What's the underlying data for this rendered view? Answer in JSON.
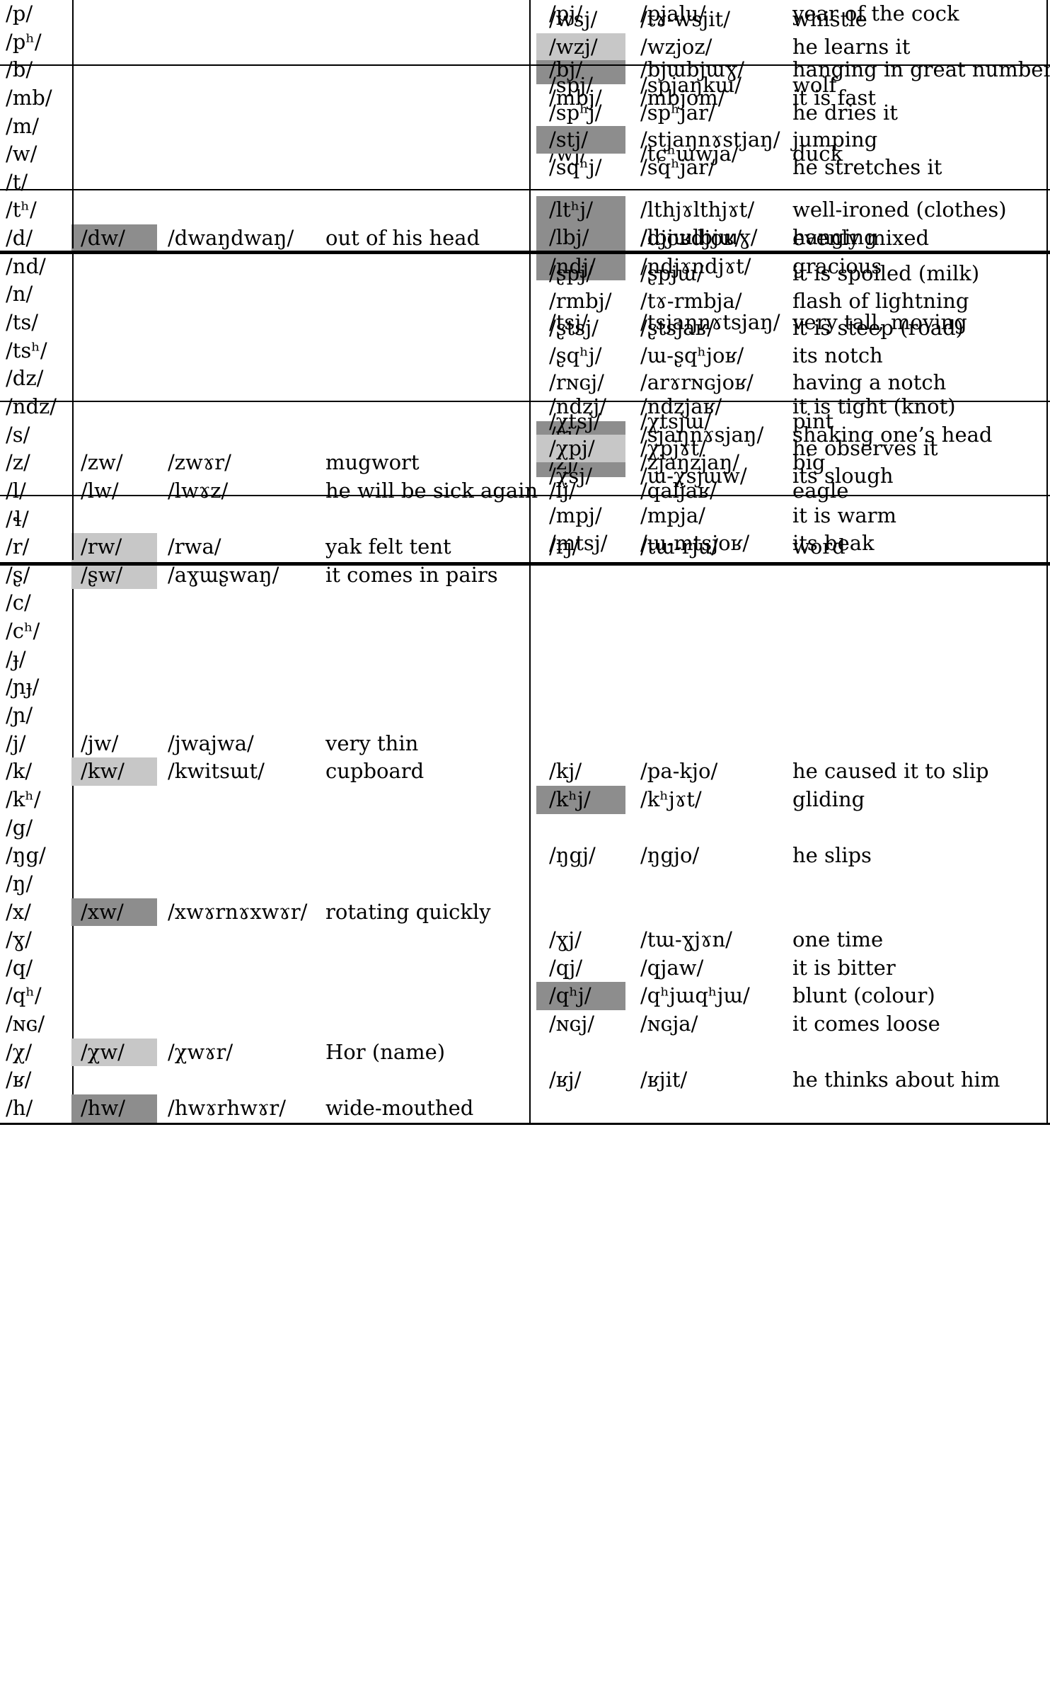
{
  "highlight_colors": {
    "dark": "#8d8d8d",
    "light": "#c7c7c7"
  },
  "main": {
    "left_rows": [
      {
        "phoneme": "/p/"
      },
      {
        "phoneme": "/pʰ/"
      },
      {
        "phoneme": "/b/"
      },
      {
        "phoneme": "/mb/"
      },
      {
        "phoneme": "/m/"
      },
      {
        "phoneme": "/w/"
      },
      {
        "phoneme": "/t/"
      },
      {
        "phoneme": "/tʰ/"
      },
      {
        "phoneme": "/d/",
        "cluster": "/dw/",
        "example": "/dwaŋdwaŋ/",
        "gloss": "out of his head",
        "hl": "dark"
      },
      {
        "phoneme": "/nd/"
      },
      {
        "phoneme": "/n/"
      },
      {
        "phoneme": "/ts/"
      },
      {
        "phoneme": "/tsʰ/"
      },
      {
        "phoneme": "/dz/"
      },
      {
        "phoneme": "/ndz/"
      },
      {
        "phoneme": "/s/"
      },
      {
        "phoneme": "/z/",
        "cluster": "/zw/",
        "example": "/zwɤr/",
        "gloss": "mugwort"
      },
      {
        "phoneme": "/l/",
        "cluster": "/lw/",
        "example": "/lwɤz/",
        "gloss": "he will be sick again"
      },
      {
        "phoneme": "/ɬ/"
      },
      {
        "phoneme": "/r/",
        "cluster": "/rw/",
        "example": "/rwa/",
        "gloss": "yak felt tent",
        "hl": "light"
      },
      {
        "phoneme": "/ʂ/",
        "cluster": "/ʂw/",
        "example": "/aɣɯʂwaŋ/",
        "gloss": "it comes in pairs",
        "hl": "light"
      },
      {
        "phoneme": "/c/"
      },
      {
        "phoneme": "/cʰ/"
      },
      {
        "phoneme": "/ɟ/"
      },
      {
        "phoneme": "/ɲɟ/"
      },
      {
        "phoneme": "/ɲ/"
      },
      {
        "phoneme": "/j/",
        "cluster": "/jw/",
        "example": "/jwajwa/",
        "gloss": "very thin"
      },
      {
        "phoneme": "/k/",
        "cluster": "/kw/",
        "example": "/kwitsɯt/",
        "gloss": "cupboard",
        "hl": "light"
      },
      {
        "phoneme": "/kʰ/"
      },
      {
        "phoneme": "/g/"
      },
      {
        "phoneme": "/ŋg/"
      },
      {
        "phoneme": "/ŋ/"
      },
      {
        "phoneme": "/x/",
        "cluster": "/xw/",
        "example": "/xwɤrnɤxwɤr/",
        "gloss": "rotating quickly",
        "hl": "dark"
      },
      {
        "phoneme": "/ɣ/"
      },
      {
        "phoneme": "/q/"
      },
      {
        "phoneme": "/qʰ/"
      },
      {
        "phoneme": "/ɴɢ/"
      },
      {
        "phoneme": "/χ/",
        "cluster": "/χw/",
        "example": "/χwɤr/",
        "gloss": "Hor (name)",
        "hl": "light"
      },
      {
        "phoneme": "/ʁ/"
      },
      {
        "phoneme": "/h/",
        "cluster": "/hw/",
        "example": "/hwɤrhwɤr/",
        "gloss": "wide-mouthed",
        "hl": "dark"
      }
    ],
    "right_rows": [
      {
        "cluster": "/pj/",
        "example": "/pjalu/",
        "gloss": "year of the cock"
      },
      {},
      {
        "cluster": "/bj/",
        "example": "/bjɯbjɯɣ/",
        "gloss": "hanging in great number",
        "hl": "dark"
      },
      {
        "cluster": "/mbj/",
        "example": "/mbjom/",
        "gloss": "it is fast"
      },
      {},
      {
        "cluster": "/wj/",
        "example": "/tɕʰɯwja/",
        "gloss": "duck"
      },
      {},
      {},
      {
        "cluster": "/dj/",
        "example": "/djoʁdjoʁ/",
        "gloss": "evenly mixed",
        "hl": "dark"
      },
      {
        "cluster": "/ndj/",
        "example": "/ndjɤndjɤt/",
        "gloss": "gracious",
        "hl": "dark"
      },
      {},
      {
        "cluster": "/tsj/",
        "example": "/tsjaŋnɤtsjaŋ/",
        "gloss": "very tall, moving"
      },
      {},
      {},
      {
        "cluster": "/ndzj/",
        "example": "/ndzjaʁ/",
        "gloss": "it is tight (knot)"
      },
      {
        "cluster": "/sj/",
        "example": "/sjaŋnɤsjaŋ/",
        "gloss": "shaking one’s head",
        "hl": "dark"
      },
      {
        "cluster": "/zj/",
        "example": "/zjaŋzjaŋ/",
        "gloss": "big",
        "hl": "dark"
      },
      {
        "cluster": "/lj/",
        "example": "/qaljaʁ/",
        "gloss": "eagle"
      },
      {},
      {
        "cluster": "/rj/",
        "example": "/tɯ-rju/",
        "gloss": "word"
      },
      {},
      {},
      {},
      {},
      {},
      {},
      {},
      {
        "cluster": "/kj/",
        "example": "/pa-kjo/",
        "gloss": "he caused it to slip"
      },
      {
        "cluster": "/kʰj/",
        "example": "/kʰjɤt/",
        "gloss": "gliding",
        "hl": "dark"
      },
      {},
      {
        "cluster": "/ŋgj/",
        "example": "/ŋgjo/",
        "gloss": "he slips"
      },
      {},
      {},
      {
        "cluster": "/ɣj/",
        "example": "/tɯ-ɣjɤn/",
        "gloss": "one time"
      },
      {
        "cluster": "/qj/",
        "example": "/qjaw/",
        "gloss": "it is bitter"
      },
      {
        "cluster": "/qʰj/",
        "example": "/qʰjɯqʰjɯ/",
        "gloss": "blunt (colour)",
        "hl": "dark"
      },
      {
        "cluster": "/ɴɢj/",
        "example": "/ɴɢja/",
        "gloss": "it comes loose"
      },
      {},
      {
        "cluster": "/ʁj/",
        "example": "/ʁjit/",
        "gloss": "he thinks about him"
      },
      {}
    ]
  },
  "bands": [
    {
      "divider": "normal",
      "rows": [
        {
          "cluster": "/wsj/",
          "example": "/tɤ-wsjit/",
          "gloss": "whistle"
        },
        {
          "cluster": "/wzj/",
          "example": "/wzjoz/",
          "gloss": "he learns it",
          "hl": "light"
        }
      ]
    },
    {
      "divider": "normal",
      "rows": [
        {
          "cluster": "/spj/",
          "example": "/spjaŋkɯ/",
          "gloss": "wolf"
        },
        {
          "cluster": "/spʰj/",
          "example": "/spʰjar/",
          "gloss": "he dries it"
        },
        {
          "cluster": "/stj/",
          "example": "/stjaŋnɤstjaŋ/",
          "gloss": "jumping",
          "hl": "dark"
        },
        {
          "cluster": "/sqʰj/",
          "example": "/sqʰjar/",
          "gloss": "he stretches it"
        }
      ]
    },
    {
      "divider": "thick",
      "rows": [
        {
          "cluster": "/ltʰj/",
          "example": "/lthjɤlthjɤt/",
          "gloss": "well-ironed (clothes)",
          "hl": "dark"
        },
        {
          "cluster": "/lbj/",
          "example": "/lbjɯlbjɯɣ/",
          "gloss": "hanging",
          "hl": "dark"
        }
      ]
    },
    {
      "divider": "normal",
      "rows": [
        {
          "cluster": "/ʂpj/",
          "example": "/ʂpjɯ/",
          "gloss": "it is spoiled (milk)"
        },
        {
          "cluster": "/rmbj/",
          "example": "/tɤ-rmbja/",
          "gloss": "flash of lightning"
        },
        {
          "cluster": "/ʂtsj/",
          "example": "/ʂtsjaʁ/",
          "gloss": "it is steep (road)"
        },
        {
          "cluster": "/ʂqʰj/",
          "example": "/ɯ-ʂqʰjoʁ/",
          "gloss": "its notch"
        },
        {
          "cluster": "/rɴɢj/",
          "example": "/arɤrɴɢjoʁ/",
          "gloss": "having a notch"
        }
      ]
    },
    {
      "divider": "normal",
      "rows": [
        {
          "cluster": "/χtsj/",
          "example": "/χtsjɯ/",
          "gloss": "pint"
        },
        {
          "cluster": "/χpj/",
          "example": "/χpjɤt/",
          "gloss": "he observes it",
          "hl": "light"
        },
        {
          "cluster": "/χsj/",
          "example": "/ɯ-χsjɯw/",
          "gloss": "its slough"
        }
      ]
    },
    {
      "divider": "thick",
      "rows": [
        {
          "cluster": "/mpj/",
          "example": "/mpja/",
          "gloss": "it is warm"
        },
        {
          "cluster": "/mtsj/",
          "example": "/ɯ-mtsjoʁ/",
          "gloss": "its beak"
        }
      ]
    }
  ]
}
